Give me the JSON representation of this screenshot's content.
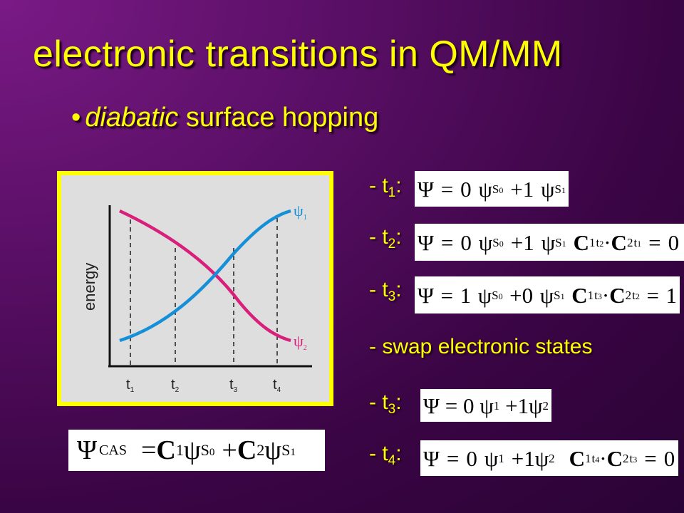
{
  "title": "electronic transitions in QM/MM",
  "bullet": {
    "dot": "•",
    "italic": "diabatic",
    "rest": " surface hopping"
  },
  "plot": {
    "ylabel": "energy",
    "ticks": [
      "t",
      "t",
      "t",
      "t"
    ],
    "tick_subs": [
      "1",
      "2",
      "3",
      "4"
    ],
    "curve1_label": "ψ",
    "curve1_sub": "1",
    "curve2_label": "ψ",
    "curve2_sub": "2",
    "curve1_color": "#1590d8",
    "curve2_color": "#d81f7a"
  },
  "steps": [
    {
      "prefix": "- t",
      "sub": "1",
      "colon": ":"
    },
    {
      "prefix": "- t",
      "sub": "2",
      "colon": ":"
    },
    {
      "prefix": "- t",
      "sub": "3",
      "colon": ":"
    },
    {
      "prefix": "- swap electronic  states",
      "sub": "",
      "colon": ""
    },
    {
      "prefix": "- t",
      "sub": "3",
      "colon": ":"
    },
    {
      "prefix": "- t",
      "sub": "4",
      "colon": ":"
    }
  ],
  "equations": {
    "psi": "Ψ",
    "eq": "=",
    "plus": "+",
    "dot": "·",
    "phi": "ψ",
    "S": "S",
    "C": "C",
    "t": "t",
    "n0": "0",
    "n1": "1",
    "n2": "2",
    "n3": "3",
    "n4": "4",
    "cas": "CAS"
  }
}
